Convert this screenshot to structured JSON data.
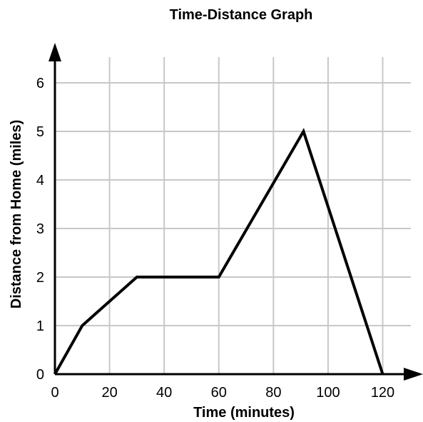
{
  "chart_data": {
    "type": "line",
    "title": "Time-Distance Graph",
    "xlabel": "Time (minutes)",
    "ylabel": "Distance from Home (miles)",
    "xlim": [
      0,
      130
    ],
    "ylim": [
      0,
      6.8
    ],
    "x_ticks": [
      0,
      20,
      40,
      60,
      80,
      100,
      120
    ],
    "y_ticks": [
      0,
      1,
      2,
      3,
      4,
      5,
      6
    ],
    "grid": true,
    "series": [
      {
        "points": [
          [
            0,
            0
          ],
          [
            10,
            1
          ],
          [
            30,
            2
          ],
          [
            60,
            2
          ],
          [
            91,
            5
          ],
          [
            120,
            0
          ]
        ]
      }
    ]
  }
}
